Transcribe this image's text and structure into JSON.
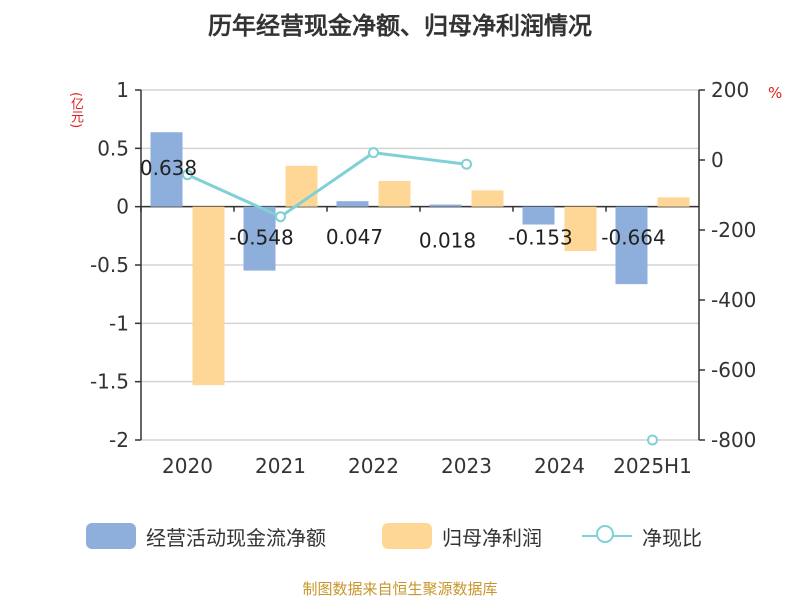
{
  "title": "历年经营现金净额、归母净利润情况",
  "left_unit": "(亿元)",
  "right_unit": "%",
  "source": "制图数据来自恒生聚源数据库",
  "colors": {
    "cash": "#8eaedc",
    "profit": "#fed797",
    "ratio": "#80d0d6"
  },
  "chart_data": {
    "type": "bar",
    "categories": [
      "2020",
      "2021",
      "2022",
      "2023",
      "2024",
      "2025H1"
    ],
    "series": [
      {
        "name": "经营活动现金流净额",
        "type": "bar",
        "axis": "left",
        "values": [
          0.638,
          -0.548,
          0.047,
          0.018,
          -0.153,
          -0.664
        ],
        "labels": [
          "0.638",
          "-0.548",
          "0.047",
          "0.018",
          "-0.153",
          "-0.664"
        ]
      },
      {
        "name": "归母净利润",
        "type": "bar",
        "axis": "left",
        "values": [
          -1.53,
          0.35,
          0.22,
          0.14,
          -0.38,
          0.08
        ]
      },
      {
        "name": "净现比",
        "type": "line",
        "axis": "right",
        "values": [
          -42,
          -162,
          21,
          -12,
          null,
          -800
        ]
      }
    ],
    "ylim_left": [
      -2,
      1
    ],
    "yticks_left": [
      1,
      0.5,
      0,
      -0.5,
      -1,
      -1.5,
      -2
    ],
    "ytick_labels_left": [
      "1",
      "0.5",
      "0",
      "-0.5",
      "-1",
      "-1.5",
      "-2"
    ],
    "ylim_right": [
      -800,
      200
    ],
    "yticks_right": [
      200,
      0,
      -200,
      -400,
      -600,
      -800
    ],
    "ytick_labels_right": [
      "200",
      "0",
      "-200",
      "-400",
      "-600",
      "-800"
    ],
    "grid": true,
    "legend": "bottom"
  },
  "legend": {
    "cash": "经营活动现金流净额",
    "profit": "归母净利润",
    "ratio": "净现比"
  }
}
